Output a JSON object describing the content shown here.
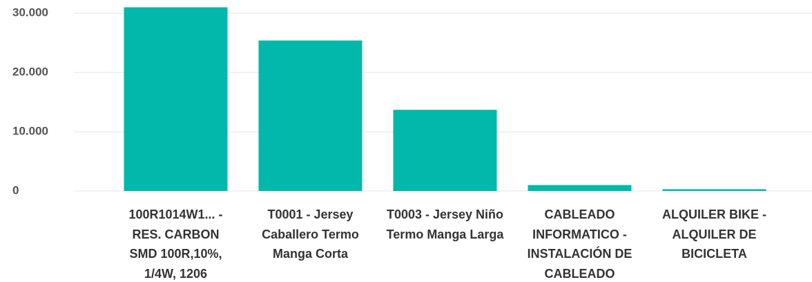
{
  "chart_data": {
    "type": "bar",
    "categories": [
      "100R1014W1... - RES. CARBON SMD 100R,10%, 1/4W, 1206",
      "T0001 - Jersey Caballero Termo Manga Corta",
      "T0003 - Jersey Niño Termo Manga Larga",
      "CABLEADO INFORMATICO - INSTALACIÓN DE CABLEADO",
      "ALQUILER BIKE - ALQUILER DE BICICLETA"
    ],
    "values": [
      31000,
      25400,
      13700,
      1000,
      300
    ],
    "color": "#01b8aa",
    "ylim": [
      0,
      32000
    ],
    "yticks": [
      0,
      {
        "value": 10000,
        "label": "10.000"
      },
      {
        "value": 20000,
        "label": "20.000"
      },
      {
        "value": 30000,
        "label": "30.000"
      }
    ],
    "grid": true
  }
}
